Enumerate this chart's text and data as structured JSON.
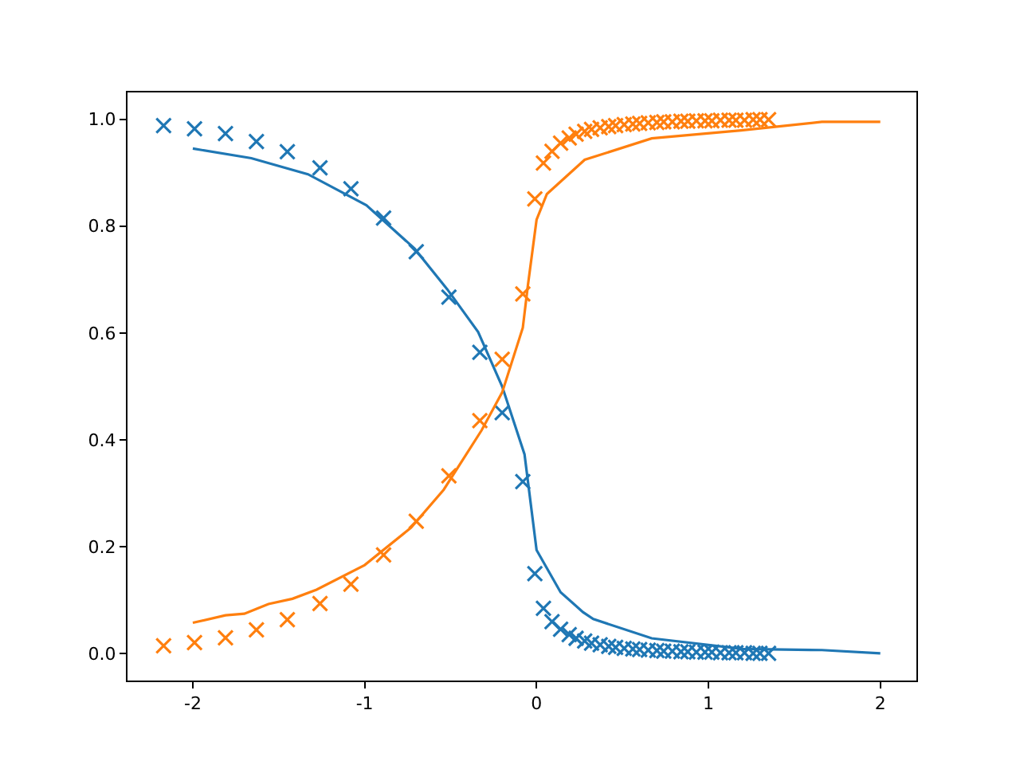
{
  "chart_data": {
    "type": "line",
    "xlim": [
      -2.38,
      2.21
    ],
    "ylim": [
      -0.05,
      1.05
    ],
    "xticks": [
      -2,
      -1,
      0,
      1,
      2
    ],
    "yticks": [
      {
        "value": 0,
        "label": "0.0"
      },
      {
        "value": 0.2,
        "label": "0.2"
      },
      {
        "value": 0.4,
        "label": "0.4"
      },
      {
        "value": 0.6,
        "label": "0.6"
      },
      {
        "value": 0.8,
        "label": "0.8"
      },
      {
        "value": 1,
        "label": "1.0"
      }
    ],
    "grid": false,
    "series": [
      {
        "type": "scatter",
        "marker": "cross",
        "color": "#1f77b4",
        "x": [
          -2.17,
          -1.99,
          -1.81,
          -1.63,
          -1.45,
          -1.26,
          -1.08,
          -0.89,
          -0.7,
          -0.51,
          -0.33,
          -0.2,
          -0.08,
          -0.01,
          0.04,
          0.09,
          0.14,
          0.19,
          0.23,
          0.28,
          0.32,
          0.37,
          0.42,
          0.46,
          0.51,
          0.56,
          0.6,
          0.65,
          0.7,
          0.74,
          0.79,
          0.84,
          0.88,
          0.93,
          0.98,
          1.02,
          1.07,
          1.12,
          1.16,
          1.21,
          1.26,
          1.3,
          1.35
        ],
        "values": [
          0.988,
          0.982,
          0.973,
          0.958,
          0.939,
          0.909,
          0.87,
          0.815,
          0.752,
          0.667,
          0.564,
          0.451,
          0.322,
          0.15,
          0.085,
          0.06,
          0.046,
          0.036,
          0.029,
          0.024,
          0.02,
          0.017,
          0.014,
          0.012,
          0.01,
          0.009,
          0.008,
          0.007,
          0.006,
          0.005,
          0.005,
          0.004,
          0.004,
          0.003,
          0.003,
          0.003,
          0.002,
          0.002,
          0.002,
          0.002,
          0.001,
          0.001,
          0.001
        ]
      },
      {
        "type": "scatter",
        "marker": "cross",
        "color": "#ff7f0e",
        "x": [
          -2.17,
          -1.99,
          -1.81,
          -1.63,
          -1.45,
          -1.26,
          -1.08,
          -0.89,
          -0.7,
          -0.51,
          -0.33,
          -0.2,
          -0.08,
          -0.01,
          0.04,
          0.09,
          0.14,
          0.19,
          0.23,
          0.28,
          0.32,
          0.37,
          0.42,
          0.46,
          0.51,
          0.56,
          0.6,
          0.65,
          0.7,
          0.74,
          0.79,
          0.84,
          0.88,
          0.93,
          0.98,
          1.02,
          1.07,
          1.12,
          1.16,
          1.21,
          1.26,
          1.3,
          1.35
        ],
        "values": [
          0.015,
          0.021,
          0.03,
          0.045,
          0.064,
          0.094,
          0.13,
          0.185,
          0.248,
          0.333,
          0.436,
          0.551,
          0.673,
          0.851,
          0.918,
          0.94,
          0.955,
          0.965,
          0.972,
          0.977,
          0.981,
          0.984,
          0.986,
          0.988,
          0.99,
          0.991,
          0.992,
          0.993,
          0.994,
          0.995,
          0.995,
          0.996,
          0.996,
          0.997,
          0.997,
          0.997,
          0.998,
          0.998,
          0.998,
          0.998,
          0.999,
          0.999,
          0.999
        ]
      },
      {
        "marker": "none",
        "color": "#1f77b4",
        "x": [
          -2,
          -1.66,
          -1.33,
          -0.99,
          -0.71,
          -0.52,
          -0.34,
          -0.2,
          -0.07,
          0.0,
          0.14,
          0.27,
          0.33,
          0.67,
          1.2,
          1.66,
          2.0
        ],
        "values": [
          0.945,
          0.927,
          0.897,
          0.839,
          0.758,
          0.682,
          0.602,
          0.5,
          0.373,
          0.194,
          0.115,
          0.078,
          0.065,
          0.029,
          0.009,
          0.007,
          0.001
        ]
      },
      {
        "marker": "none",
        "color": "#ff7f0e",
        "x": [
          -2,
          -1.81,
          -1.7,
          -1.56,
          -1.42,
          -1.28,
          -1.0,
          -0.73,
          -0.54,
          -0.32,
          -0.2,
          -0.08,
          -0.05,
          0.0,
          0.06,
          0.28,
          0.67,
          1.19,
          1.66,
          2.0
        ],
        "values": [
          0.058,
          0.072,
          0.075,
          0.093,
          0.103,
          0.12,
          0.166,
          0.236,
          0.307,
          0.418,
          0.489,
          0.61,
          0.69,
          0.812,
          0.86,
          0.924,
          0.964,
          0.979,
          0.995,
          0.995
        ]
      }
    ]
  }
}
